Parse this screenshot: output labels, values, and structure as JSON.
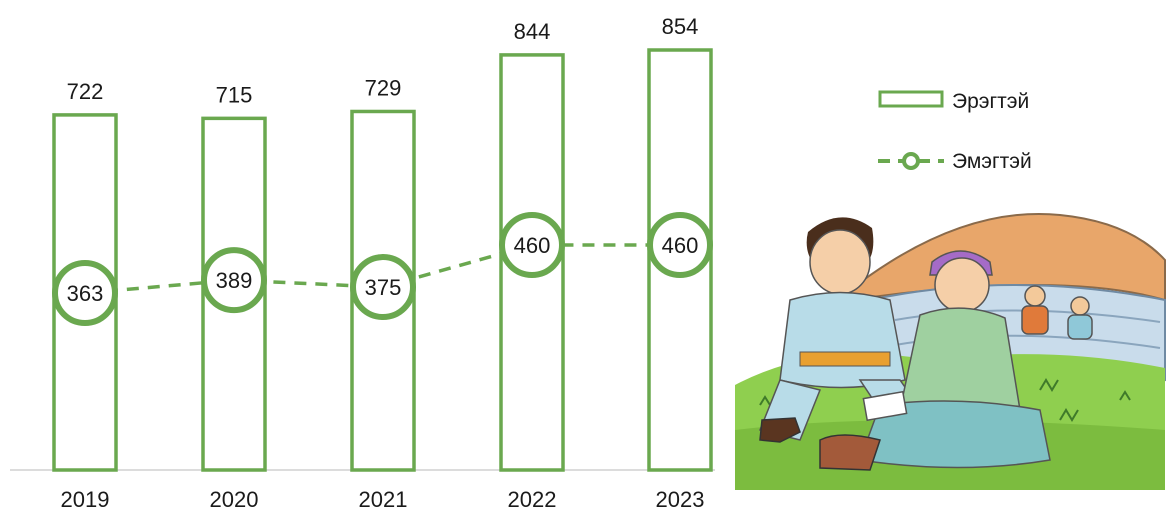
{
  "chart_data": {
    "type": "bar",
    "categories": [
      "2019",
      "2020",
      "2021",
      "2022",
      "2023"
    ],
    "series": [
      {
        "name": "Эрэгтэй",
        "kind": "bar",
        "values": [
          722,
          715,
          729,
          844,
          854
        ]
      },
      {
        "name": "Эмэгтэй",
        "kind": "line",
        "values": [
          363,
          389,
          375,
          460,
          460
        ]
      }
    ],
    "legend_position": "right",
    "grid": false,
    "bar_data_labels": true,
    "line_data_labels": true
  },
  "colors": {
    "series_green": "#6aa84f",
    "text": "#1a1a1a",
    "axis": "#d0d0d0"
  },
  "legend": {
    "male_label": "Эрэгтэй",
    "female_label": "Эмэгтэй"
  },
  "illustration": {
    "icon": "family-ger-illustration"
  }
}
